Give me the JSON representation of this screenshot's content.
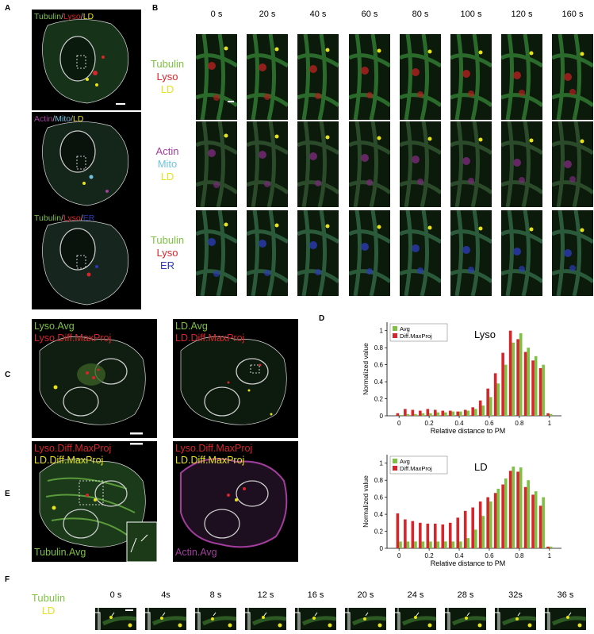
{
  "panel_letters": {
    "A": "A",
    "B": "B",
    "C": "C",
    "D": "D",
    "E": "E",
    "F": "F"
  },
  "colors": {
    "tubulin": "#7dc242",
    "lyso": "#d7262b",
    "ld": "#e6e21c",
    "actin": "#a23d9e",
    "mito": "#6fc3df",
    "er": "#2c3bb5",
    "gray": "#b0b0b0"
  },
  "panelA": {
    "rows": [
      [
        {
          "t": "Tubulin",
          "c": "tubulin"
        },
        {
          "t": "/",
          "c": "gray"
        },
        {
          "t": "Lyso",
          "c": "lyso"
        },
        {
          "t": "/",
          "c": "gray"
        },
        {
          "t": "LD",
          "c": "ld"
        }
      ],
      [
        {
          "t": "Actin",
          "c": "actin"
        },
        {
          "t": "/",
          "c": "gray"
        },
        {
          "t": "Mito",
          "c": "mito"
        },
        {
          "t": "/",
          "c": "gray"
        },
        {
          "t": "LD",
          "c": "ld"
        }
      ],
      [
        {
          "t": "Tubulin",
          "c": "tubulin"
        },
        {
          "t": "/",
          "c": "gray"
        },
        {
          "t": "Lyso",
          "c": "lyso"
        },
        {
          "t": "/",
          "c": "gray"
        },
        {
          "t": "ER",
          "c": "er"
        }
      ]
    ]
  },
  "panelB": {
    "times": [
      "0 s",
      "20 s",
      "40 s",
      "60 s",
      "80 s",
      "100 s",
      "120 s",
      "160 s"
    ],
    "row_labels": [
      [
        {
          "t": "Tubulin",
          "c": "tubulin"
        },
        {
          "t": "Lyso",
          "c": "lyso"
        },
        {
          "t": "LD",
          "c": "ld"
        }
      ],
      [
        {
          "t": "Actin",
          "c": "actin"
        },
        {
          "t": "Mito",
          "c": "mito"
        },
        {
          "t": "LD",
          "c": "ld"
        }
      ],
      [
        {
          "t": "Tubulin",
          "c": "tubulin"
        },
        {
          "t": "Lyso",
          "c": "lyso"
        },
        {
          "t": "ER",
          "c": "er"
        }
      ]
    ]
  },
  "panelC": {
    "left": [
      {
        "t": "Lyso.Avg",
        "c": "tubulin"
      },
      {
        "t": "Lyso.Diff.MaxProj",
        "c": "lyso"
      }
    ],
    "right": [
      {
        "t": "LD.Avg",
        "c": "tubulin"
      },
      {
        "t": "LD.Diff.MaxProj",
        "c": "lyso"
      }
    ]
  },
  "panelE": {
    "left_top": [
      {
        "t": "Lyso.Diff.MaxProj",
        "c": "lyso"
      },
      {
        "t": "LD.Diff.MaxProj",
        "c": "ld"
      }
    ],
    "left_bottom": {
      "t": "Tubulin.Avg",
      "c": "tubulin"
    },
    "right_top": [
      {
        "t": "Lyso.Diff.MaxProj",
        "c": "lyso"
      },
      {
        "t": "LD.Diff.MaxProj",
        "c": "ld"
      }
    ],
    "right_bottom": {
      "t": "Actin.Avg",
      "c": "actin"
    }
  },
  "panelF": {
    "times": [
      "0 s",
      "4s",
      "8 s",
      "12 s",
      "16 s",
      "20 s",
      "24 s",
      "28 s",
      "32s",
      "36 s"
    ],
    "row_label": [
      {
        "t": "Tubulin",
        "c": "tubulin"
      },
      {
        "t": "LD",
        "c": "ld"
      }
    ]
  },
  "chart_data": [
    {
      "type": "bar",
      "title": "Lyso",
      "xlabel": "Relative distance to PM",
      "ylabel": "Normalized value",
      "xlim": [
        -0.08,
        1.08
      ],
      "ylim": [
        0,
        1.1
      ],
      "xticks": [
        "0",
        "0.2",
        "0.4",
        "0.6",
        "0.8",
        "1"
      ],
      "yticks": [
        "0",
        "0.2",
        "0.4",
        "0.6",
        "0.8",
        "1"
      ],
      "legend_position": "top-left",
      "x": [
        0,
        0.05,
        0.1,
        0.15,
        0.2,
        0.25,
        0.3,
        0.35,
        0.4,
        0.45,
        0.5,
        0.55,
        0.6,
        0.65,
        0.7,
        0.75,
        0.8,
        0.85,
        0.9,
        0.95,
        1.0
      ],
      "series": [
        {
          "name": "Avg",
          "color": "#7dc242",
          "values": [
            0.01,
            0.02,
            0.02,
            0.03,
            0.03,
            0.04,
            0.04,
            0.05,
            0.05,
            0.06,
            0.08,
            0.12,
            0.22,
            0.38,
            0.6,
            0.86,
            0.97,
            0.8,
            0.7,
            0.6,
            0.02
          ]
        },
        {
          "name": "Diff.MaxProj",
          "color": "#d7262b",
          "values": [
            0.03,
            0.08,
            0.07,
            0.06,
            0.08,
            0.07,
            0.06,
            0.06,
            0.05,
            0.07,
            0.1,
            0.18,
            0.32,
            0.5,
            0.74,
            1.0,
            0.9,
            0.75,
            0.65,
            0.56,
            0.03
          ]
        }
      ]
    },
    {
      "type": "bar",
      "title": "LD",
      "xlabel": "Relative distance to PM",
      "ylabel": "Normalized value",
      "xlim": [
        -0.08,
        1.08
      ],
      "ylim": [
        0,
        1.1
      ],
      "xticks": [
        "0",
        "0.2",
        "0.4",
        "0.6",
        "0.8",
        "1"
      ],
      "yticks": [
        "0",
        "0.2",
        "0.4",
        "0.6",
        "0.8",
        "1"
      ],
      "legend_position": "top-left",
      "x": [
        0,
        0.05,
        0.1,
        0.15,
        0.2,
        0.25,
        0.3,
        0.35,
        0.4,
        0.45,
        0.5,
        0.55,
        0.6,
        0.65,
        0.7,
        0.75,
        0.8,
        0.85,
        0.9,
        0.95,
        1.0
      ],
      "series": [
        {
          "name": "Avg",
          "color": "#7dc242",
          "values": [
            0.08,
            0.08,
            0.08,
            0.08,
            0.08,
            0.08,
            0.08,
            0.08,
            0.08,
            0.12,
            0.22,
            0.38,
            0.55,
            0.7,
            0.82,
            0.96,
            0.95,
            0.8,
            0.67,
            0.6,
            0.02
          ]
        },
        {
          "name": "Diff.MaxProj",
          "color": "#d7262b",
          "values": [
            0.41,
            0.34,
            0.32,
            0.3,
            0.29,
            0.29,
            0.28,
            0.3,
            0.36,
            0.44,
            0.48,
            0.55,
            0.6,
            0.65,
            0.75,
            0.91,
            0.9,
            0.72,
            0.63,
            0.5,
            0.02
          ]
        }
      ]
    }
  ]
}
